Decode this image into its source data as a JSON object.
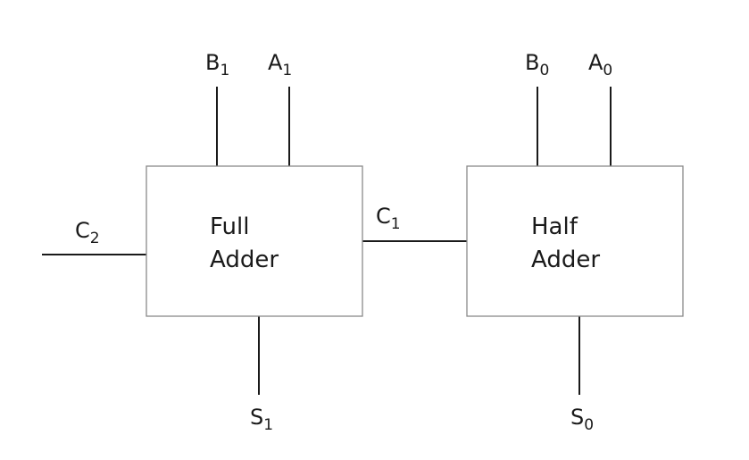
{
  "colors": {
    "line": "#1a1a1a",
    "box_border": "#8a8a8a",
    "background": "#ffffff"
  },
  "blocks": {
    "full_adder": {
      "line1": "Full",
      "line2": "Adder"
    },
    "half_adder": {
      "line1": "Half",
      "line2": "Adder"
    }
  },
  "signals": {
    "b1": {
      "base": "B",
      "sub": "1"
    },
    "a1": {
      "base": "A",
      "sub": "1"
    },
    "b0": {
      "base": "B",
      "sub": "0"
    },
    "a0": {
      "base": "A",
      "sub": "0"
    },
    "c2": {
      "base": "C",
      "sub": "2"
    },
    "c1": {
      "base": "C",
      "sub": "1"
    },
    "s1": {
      "base": "S",
      "sub": "1"
    },
    "s0": {
      "base": "S",
      "sub": "0"
    }
  }
}
